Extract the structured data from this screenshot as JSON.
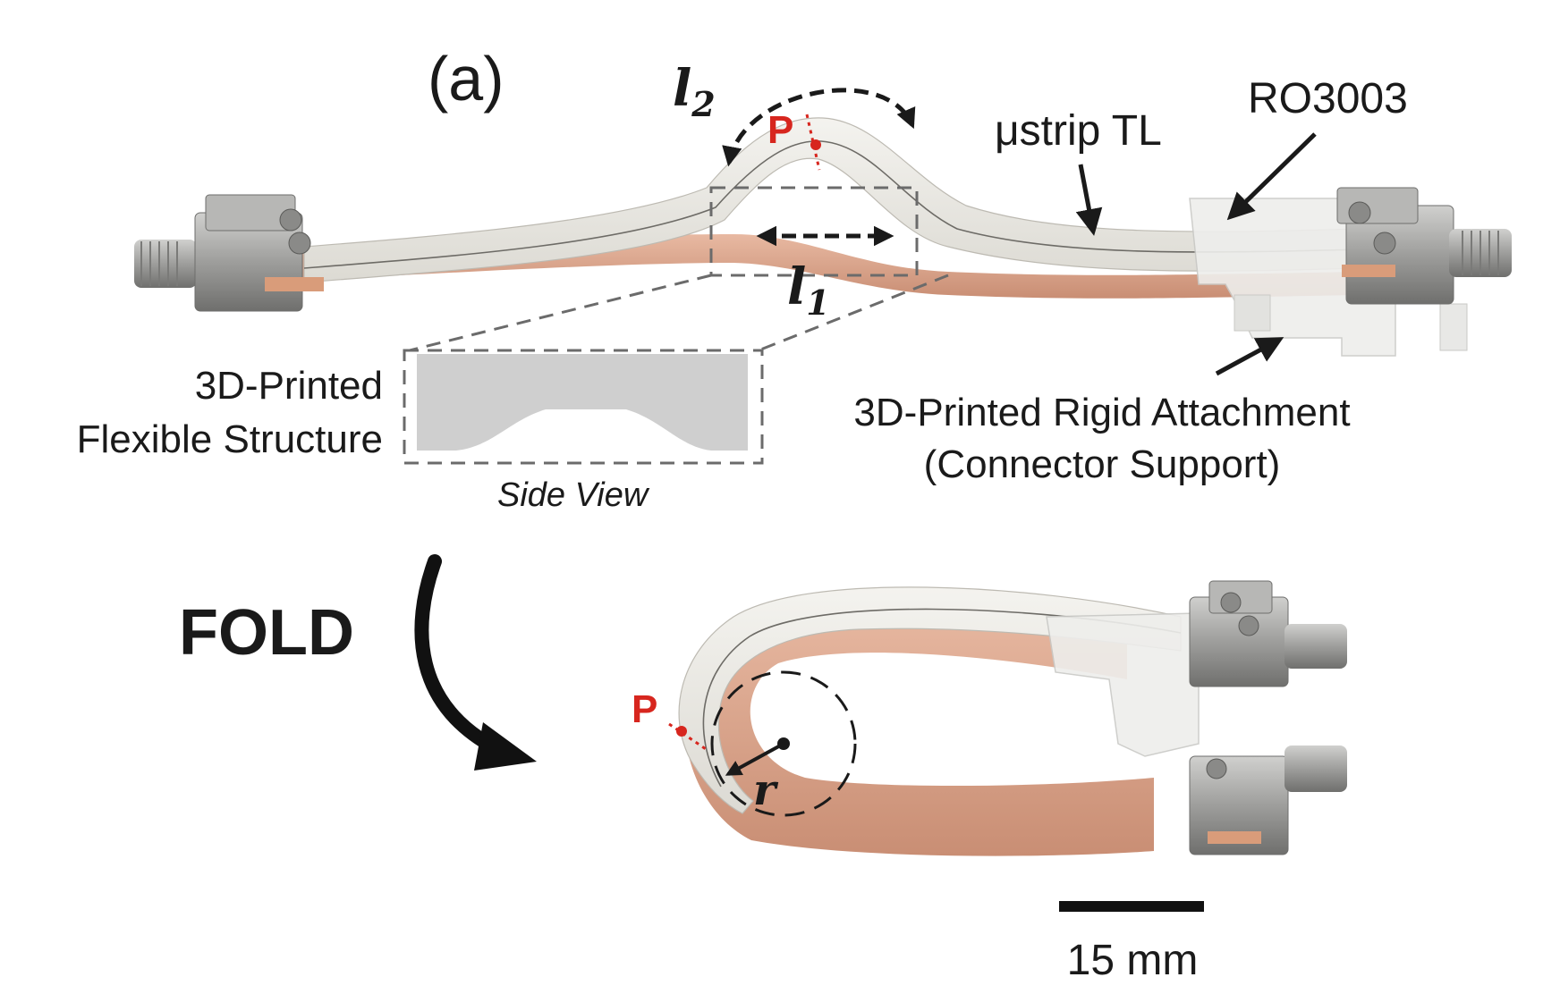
{
  "panel_label": "(a)",
  "labels": {
    "l2": "l",
    "l2_sub": "2",
    "l1": "l",
    "l1_sub": "1",
    "point_top": "P",
    "point_bottom": "P",
    "microstrip": "μstrip TL",
    "substrate": "RO3003",
    "flex_structure_line1": "3D-Printed",
    "flex_structure_line2": "Flexible Structure",
    "side_view": "Side View",
    "rigid_line1": "3D-Printed Rigid Attachment",
    "rigid_line2": "(Connector Support)",
    "fold": "FOLD",
    "radius": "r",
    "scale_bar": "15 mm"
  },
  "colors": {
    "accent_red": "#d7261e",
    "strip_white": "#ecebe6",
    "copper": "#d9a48a",
    "connector_metal": "#a9a9a7",
    "side_view_gray": "#cfcfcf",
    "dash_gray": "#6b6b6b"
  },
  "icons": {
    "fold_arrow": "curved-arrow-icon",
    "pointer": "arrow-icon"
  }
}
